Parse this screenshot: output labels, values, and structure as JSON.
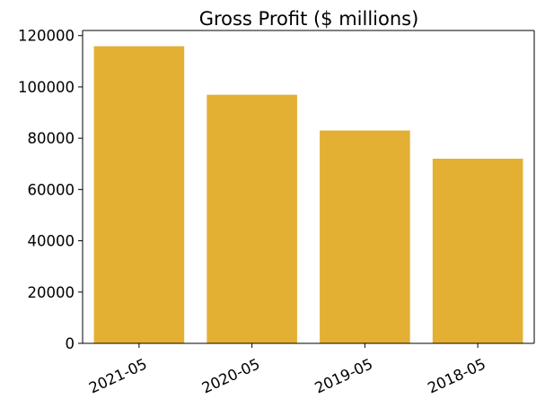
{
  "chart_data": {
    "type": "bar",
    "title": "Gross Profit ($ millions)",
    "xlabel": "",
    "ylabel": "",
    "categories": [
      "2021-05",
      "2020-05",
      "2019-05",
      "2018-05"
    ],
    "values": [
      115856,
      96937,
      83000,
      72000
    ],
    "ylim": [
      0,
      122000
    ],
    "yticks": [
      0,
      20000,
      40000,
      60000,
      80000,
      100000,
      120000
    ],
    "ytick_labels": [
      "0",
      "20000",
      "40000",
      "60000",
      "80000",
      "100000",
      "120000"
    ],
    "bar_color": "#e3b033",
    "grid": false,
    "legend": "none"
  }
}
